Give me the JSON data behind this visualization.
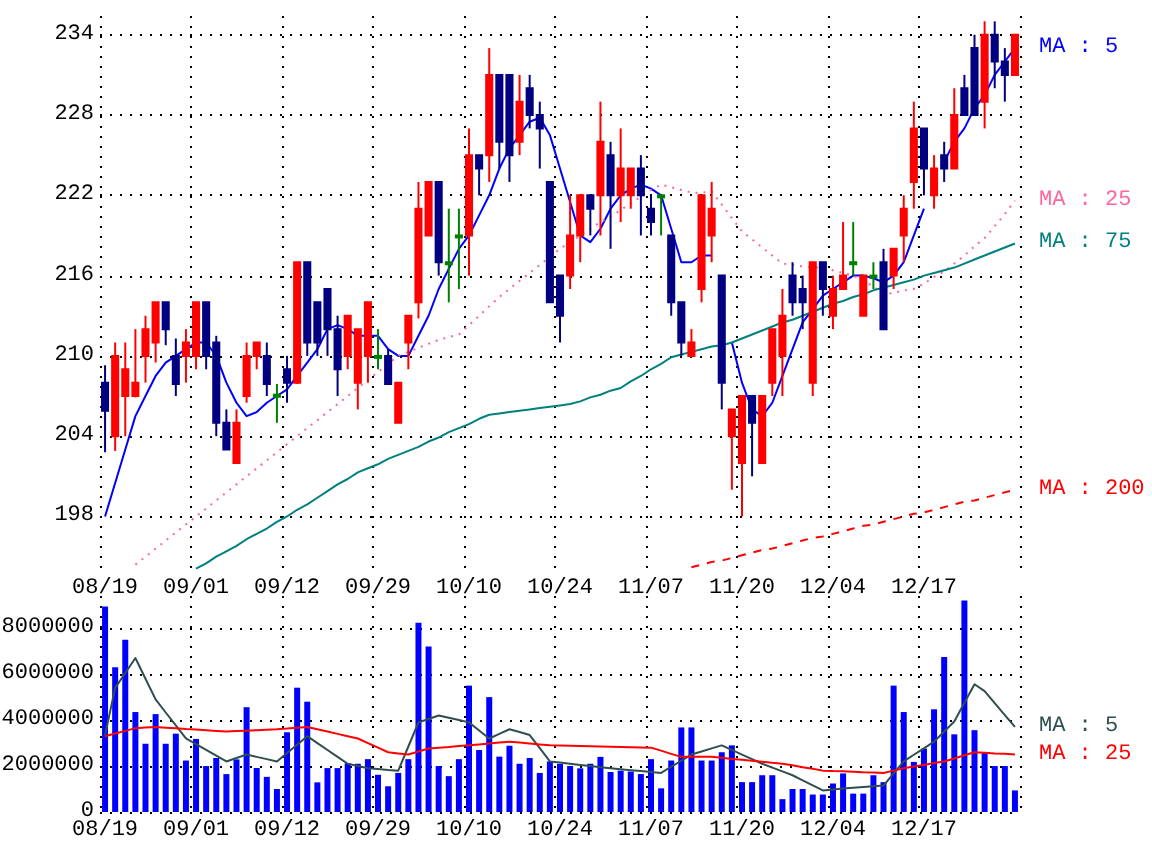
{
  "chart_data": [
    {
      "type": "candlestick",
      "grid": true,
      "marker": "none",
      "categories": [
        "08/19",
        null,
        null,
        null,
        null,
        null,
        null,
        null,
        null,
        "09/01",
        null,
        null,
        null,
        null,
        null,
        null,
        null,
        null,
        "09/12",
        null,
        null,
        null,
        null,
        null,
        null,
        null,
        null,
        "09/29",
        null,
        null,
        null,
        null,
        null,
        null,
        null,
        null,
        "10/10",
        null,
        null,
        null,
        null,
        null,
        null,
        null,
        null,
        "10/24",
        null,
        null,
        null,
        null,
        null,
        null,
        null,
        null,
        "11/07",
        null,
        null,
        null,
        null,
        null,
        null,
        null,
        null,
        "11/20",
        null,
        null,
        null,
        null,
        null,
        null,
        null,
        null,
        "12/04",
        null,
        null,
        null,
        null,
        null,
        null,
        null,
        null,
        "12/17",
        null,
        null,
        null,
        null,
        null,
        null,
        null,
        null,
        null
      ],
      "ylim": [
        194,
        235.4
      ],
      "yticks": [
        198,
        204,
        210,
        216,
        222,
        228,
        234
      ],
      "series": [
        {
          "ohlc": [
            [
              208,
              209.3,
              202.8,
              205.9
            ],
            [
              204,
              211,
              202.9,
              210
            ],
            [
              207,
              211,
              204,
              209
            ],
            [
              207,
              212,
              206.9,
              208
            ],
            [
              210,
              213,
              208,
              212
            ],
            [
              211,
              214,
              209.5,
              214
            ],
            [
              214,
              214,
              210.8,
              212
            ],
            [
              210,
              211.3,
              207,
              207.9
            ],
            [
              210,
              212,
              208,
              211
            ],
            [
              210,
              214,
              209,
              214
            ],
            [
              214,
              214,
              209,
              210
            ],
            [
              211,
              211.5,
              204,
              205
            ],
            [
              205,
              206,
              203,
              203
            ],
            [
              202,
              206,
              202,
              205
            ],
            [
              207,
              211,
              206.5,
              210
            ],
            [
              210,
              211,
              209,
              211
            ],
            [
              210,
              211,
              207,
              207.9
            ],
            [
              207.1,
              207.9,
              205,
              207.1
            ],
            [
              209,
              210,
              206.5,
              208
            ],
            [
              208,
              217,
              207.9,
              217
            ],
            [
              217,
              217,
              210,
              211
            ],
            [
              214,
              214,
              210,
              211
            ],
            [
              215,
              215,
              210,
              212
            ],
            [
              212,
              213,
              207,
              209
            ],
            [
              210,
              213,
              209,
              213
            ],
            [
              208,
              212,
              206,
              212
            ],
            [
              210,
              214,
              208,
              214
            ],
            [
              210,
              212,
              209,
              210
            ],
            [
              210,
              210.5,
              207.9,
              207.9
            ],
            [
              205,
              208,
              205,
              208
            ],
            [
              211,
              213,
              209,
              213
            ],
            [
              214,
              223,
              212.8,
              221
            ],
            [
              219,
              223,
              219,
              223
            ],
            [
              223,
              223,
              216,
              217
            ],
            [
              217,
              221,
              214,
              217
            ],
            [
              219,
              221,
              215,
              219
            ],
            [
              219,
              227,
              216,
              225
            ],
            [
              225,
              225,
              222,
              224
            ],
            [
              225,
              233,
              223,
              231
            ],
            [
              231,
              231,
              224,
              226
            ],
            [
              231,
              231,
              223,
              225
            ],
            [
              226,
              231,
              225,
              229
            ],
            [
              230,
              231,
              227,
              228
            ],
            [
              228,
              229,
              224,
              227
            ],
            [
              223,
              223,
              214,
              214
            ],
            [
              216,
              216,
              211,
              213
            ],
            [
              216,
              222,
              215,
              219
            ],
            [
              219,
              222,
              217,
              222
            ],
            [
              222,
              222,
              219,
              221
            ],
            [
              222,
              229,
              219,
              226
            ],
            [
              225,
              226,
              218,
              222
            ],
            [
              222,
              227,
              220,
              224
            ],
            [
              222,
              224,
              221,
              224
            ],
            [
              224,
              225,
              219,
              222
            ],
            [
              221,
              222,
              219,
              220
            ],
            [
              222,
              222,
              219,
              222
            ],
            [
              219,
              219,
              213,
              214
            ],
            [
              214,
              214,
              210,
              211
            ],
            [
              210,
              212,
              210,
              211
            ],
            [
              215,
              222,
              214,
              222
            ],
            [
              219,
              223,
              217,
              221
            ],
            [
              216,
              216,
              206,
              208
            ],
            [
              204,
              206,
              200,
              206
            ],
            [
              202,
              207,
              198,
              207
            ],
            [
              207,
              207,
              201,
              205
            ],
            [
              202,
              207,
              202,
              207
            ],
            [
              208,
              212,
              207,
              212
            ],
            [
              210,
              215,
              207,
              213
            ],
            [
              216,
              217,
              213,
              214
            ],
            [
              215,
              216,
              212,
              214
            ],
            [
              208,
              217,
              207,
              217
            ],
            [
              217,
              217,
              213,
              215
            ],
            [
              213,
              216,
              212,
              215
            ],
            [
              215,
              220,
              215,
              216
            ],
            [
              217,
              220,
              216,
              217
            ],
            [
              213,
              216,
              213,
              216
            ],
            [
              216,
              217,
              215,
              216
            ],
            [
              217,
              218,
              212,
              212
            ],
            [
              216,
              218,
              215,
              218
            ],
            [
              219,
              222,
              217,
              221
            ],
            [
              223,
              229,
              221,
              227
            ],
            [
              227,
              227,
              222,
              224
            ],
            [
              222,
              225,
              221,
              224
            ],
            [
              225,
              226,
              223,
              224
            ],
            [
              224,
              230,
              224,
              228
            ],
            [
              230,
              231,
              228,
              228
            ],
            [
              233,
              234,
              228,
              228
            ],
            [
              229,
              235,
              227,
              234
            ],
            [
              234,
              235,
              230,
              232
            ],
            [
              232,
              233,
              229,
              231
            ],
            [
              231,
              234,
              231,
              234
            ]
          ],
          "colors": [
            "#000080",
            "#ff0000",
            "#ff0000",
            "#ff0000",
            "#ff0000",
            "#ff0000",
            "#000080",
            "#000080",
            "#ff0000",
            "#ff0000",
            "#000080",
            "#000080",
            "#000080",
            "#ff0000",
            "#ff0000",
            "#ff0000",
            "#000080",
            "#008000",
            "#000080",
            "#ff0000",
            "#000080",
            "#000080",
            "#000080",
            "#000080",
            "#ff0000",
            "#ff0000",
            "#ff0000",
            "#008000",
            "#000080",
            "#ff0000",
            "#ff0000",
            "#ff0000",
            "#ff0000",
            "#000080",
            "#008000",
            "#008000",
            "#ff0000",
            "#000080",
            "#ff0000",
            "#000080",
            "#000080",
            "#ff0000",
            "#000080",
            "#000080",
            "#000080",
            "#000080",
            "#ff0000",
            "#ff0000",
            "#000080",
            "#ff0000",
            "#000080",
            "#ff0000",
            "#ff0000",
            "#000080",
            "#000080",
            "#008000",
            "#000080",
            "#000080",
            "#ff0000",
            "#ff0000",
            "#ff0000",
            "#000080",
            "#ff0000",
            "#ff0000",
            "#000080",
            "#ff0000",
            "#ff0000",
            "#ff0000",
            "#000080",
            "#000080",
            "#ff0000",
            "#000080",
            "#ff0000",
            "#ff0000",
            "#008000",
            "#ff0000",
            "#008000",
            "#000080",
            "#ff0000",
            "#ff0000",
            "#ff0000",
            "#000080",
            "#ff0000",
            "#000080",
            "#ff0000",
            "#000080",
            "#000080",
            "#ff0000",
            "#000080",
            "#000080",
            "#ff0000"
          ]
        },
        {
          "type": "line",
          "name": "MA : 5",
          "color": "#0000ff",
          "line_style": "solid",
          "values": [
            198,
            200.5,
            203,
            205.5,
            207,
            208.5,
            209.5,
            210,
            210.5,
            211,
            211,
            210,
            208,
            206.5,
            205.5,
            205.8,
            206.5,
            207,
            207.5,
            208.5,
            209.5,
            210.5,
            212,
            212.3,
            212,
            211.5,
            211.5,
            211.5,
            210.5,
            210,
            210,
            211.5,
            213,
            215,
            216.5,
            218,
            219,
            220.5,
            222,
            224,
            225.5,
            226.5,
            227.5,
            227.8,
            226.5,
            224,
            221.5,
            219,
            218.5,
            219.5,
            221,
            222,
            222.5,
            222.8,
            222.5,
            222,
            219.5,
            217,
            217,
            217.5,
            217.5,
            null,
            211,
            208,
            206,
            205.5,
            206.5,
            208.5,
            210.5,
            212.5,
            213.5,
            214.5,
            215,
            215.5,
            216,
            216,
            215.8,
            215.5,
            216,
            217,
            219,
            221,
            null,
            224.5,
            226,
            227,
            228.5,
            229.5,
            231,
            232,
            233
          ]
        },
        {
          "type": "line",
          "name": "MA : 25",
          "color": "#ff6699",
          "line_style": "dotted",
          "values": [
            null,
            null,
            null,
            194.4,
            195,
            195.6,
            196.2,
            196.8,
            197.4,
            198,
            198.6,
            199.2,
            199.8,
            200.4,
            201,
            201.6,
            202.2,
            202.8,
            203.4,
            204,
            204.6,
            205.2,
            205.8,
            206.4,
            207,
            207.6,
            208.2,
            208.8,
            209.4,
            210,
            210.3,
            210.6,
            210.9,
            211.2,
            211.4,
            211.6,
            212.3,
            213,
            213.7,
            214.4,
            215,
            215.6,
            216.2,
            216.8,
            217.4,
            218,
            218.5,
            219,
            219.5,
            220,
            220.4,
            220.9,
            221.4,
            221.9,
            222.4,
            222.8,
            222.6,
            222.4,
            222.2,
            222.2,
            222.3,
            221.3,
            220.3,
            219.3,
            218.7,
            218.1,
            217.5,
            216.9,
            216.8,
            216.7,
            216.6,
            216.6,
            216.4,
            216.2,
            216,
            215.6,
            215.2,
            214.6,
            214.7,
            214.9,
            215,
            215.4,
            215.9,
            216.3,
            216.9,
            217.5,
            218.2,
            218.8,
            219.7,
            220.6,
            221.6
          ]
        },
        {
          "type": "line",
          "name": "MA : 75",
          "color": "#008080",
          "line_style": "solid",
          "values": [
            null,
            null,
            null,
            null,
            null,
            null,
            null,
            null,
            null,
            194.1,
            194.5,
            195,
            195.4,
            195.8,
            196.3,
            196.7,
            197.1,
            197.6,
            198,
            198.5,
            198.9,
            199.4,
            199.9,
            200.4,
            200.8,
            201.3,
            201.6,
            201.9,
            202.3,
            202.6,
            202.9,
            203.2,
            203.6,
            203.9,
            204.3,
            204.6,
            204.9,
            205.3,
            205.6,
            205.7,
            205.8,
            205.9,
            206,
            206.1,
            206.2,
            206.3,
            206.4,
            206.6,
            206.9,
            207.1,
            207.4,
            207.6,
            208.1,
            208.5,
            209,
            209.4,
            209.9,
            210.1,
            210.3,
            210.5,
            210.7,
            210.8,
            211,
            211.3,
            211.6,
            211.9,
            212.2,
            212.5,
            212.7,
            213,
            213.3,
            213.6,
            213.9,
            214.1,
            214.4,
            214.6,
            214.9,
            215.1,
            215.3,
            215.5,
            215.7,
            216,
            216.2,
            216.4,
            216.6,
            216.9,
            217.2,
            217.5,
            217.8,
            218.1,
            218.4
          ]
        },
        {
          "type": "line",
          "name": "MA : 200",
          "color": "#ff0000",
          "line_style": "dashed",
          "values": [
            null,
            null,
            null,
            null,
            null,
            null,
            null,
            null,
            null,
            null,
            null,
            null,
            null,
            null,
            null,
            null,
            null,
            null,
            null,
            null,
            null,
            null,
            null,
            null,
            null,
            null,
            null,
            null,
            null,
            null,
            null,
            null,
            null,
            null,
            null,
            null,
            null,
            null,
            null,
            null,
            null,
            null,
            null,
            null,
            null,
            null,
            null,
            null,
            null,
            null,
            null,
            null,
            null,
            null,
            null,
            null,
            null,
            null,
            194.2,
            194.4,
            194.6,
            194.7,
            194.9,
            195.1,
            195.3,
            195.5,
            195.6,
            195.8,
            196,
            196.2,
            196.4,
            196.5,
            196.7,
            196.9,
            197.1,
            197.3,
            197.4,
            197.6,
            197.8,
            198,
            198.2,
            198.3,
            198.5,
            198.7,
            198.9,
            199.1,
            199.2,
            199.4,
            199.6,
            199.8,
            200
          ]
        }
      ]
    },
    {
      "type": "bar",
      "grid": true,
      "marker": "none",
      "categories": [
        "08/19",
        null,
        null,
        null,
        null,
        null,
        null,
        null,
        null,
        "09/01",
        null,
        null,
        null,
        null,
        null,
        null,
        null,
        null,
        "09/12",
        null,
        null,
        null,
        null,
        null,
        null,
        null,
        null,
        "09/29",
        null,
        null,
        null,
        null,
        null,
        null,
        null,
        null,
        "10/10",
        null,
        null,
        null,
        null,
        null,
        null,
        null,
        null,
        "10/24",
        null,
        null,
        null,
        null,
        null,
        null,
        null,
        null,
        "11/07",
        null,
        null,
        null,
        null,
        null,
        null,
        null,
        null,
        "11/20",
        null,
        null,
        null,
        null,
        null,
        null,
        null,
        null,
        "12/04",
        null,
        null,
        null,
        null,
        null,
        null,
        null,
        null,
        "12/17",
        null,
        null,
        null,
        null,
        null,
        null,
        null,
        null,
        null
      ],
      "ylim": [
        0,
        9400000
      ],
      "yticks": [
        0,
        2000000,
        4000000,
        6000000,
        8000000
      ],
      "series": [
        {
          "color": "#0000ff",
          "values": [
            8940000,
            6300000,
            7500000,
            4350000,
            2970000,
            4260000,
            2970000,
            3410000,
            2240000,
            3180000,
            2000000,
            2350000,
            1650000,
            2290000,
            4560000,
            1910000,
            1530000,
            1000000,
            3470000,
            5410000,
            4800000,
            1290000,
            1910000,
            1910000,
            2120000,
            2100000,
            2300000,
            1620000,
            1120000,
            1700000,
            2300000,
            8240000,
            7200000,
            2000000,
            1560000,
            2300000,
            5500000,
            2700000,
            5000000,
            2410000,
            2880000,
            2100000,
            2350000,
            1700000,
            2200000,
            2100000,
            2000000,
            1900000,
            2100000,
            2400000,
            1740000,
            1800000,
            1760000,
            1650000,
            2300000,
            1030000,
            2240000,
            3680000,
            3680000,
            2240000,
            2240000,
            2600000,
            2900000,
            1300000,
            1300000,
            1600000,
            1600000,
            560000,
            1000000,
            1000000,
            760000,
            760000,
            1240000,
            1680000,
            800000,
            800000,
            1600000,
            1300000,
            5500000,
            4350000,
            2180000,
            2760000,
            4470000,
            6740000,
            3380000,
            9200000,
            3560000,
            2560000,
            2000000,
            2000000,
            940000
          ]
        },
        {
          "type": "line",
          "name": "MA : 5",
          "color": "#2f4f4f",
          "line_style": "solid",
          "values": [
            3350000,
            5400000,
            6050000,
            6700000,
            5800000,
            4900000,
            4330000,
            3770000,
            3200000,
            2950000,
            2700000,
            2450000,
            2200000,
            2350000,
            2500000,
            2400000,
            2300000,
            2200000,
            2570000,
            2930000,
            3300000,
            3000000,
            2700000,
            2400000,
            2100000,
            2000000,
            1900000,
            1870000,
            1830000,
            1800000,
            2850000,
            3900000,
            4050000,
            4200000,
            4100000,
            4000000,
            3900000,
            3550000,
            3200000,
            3400000,
            3600000,
            3480000,
            3350000,
            2780000,
            2200000,
            2150000,
            2100000,
            2050000,
            2000000,
            1950000,
            1900000,
            1860000,
            1820000,
            1780000,
            1740000,
            1700000,
            1970000,
            2230000,
            2500000,
            2630000,
            2770000,
            2900000,
            2700000,
            2500000,
            2300000,
            2100000,
            1930000,
            1770000,
            1600000,
            1380000,
            1160000,
            940000,
            980000,
            1020000,
            1060000,
            1090000,
            1120000,
            1150000,
            1680000,
            2200000,
            2490000,
            2770000,
            3060000,
            3500000,
            3940000,
            4750000,
            5560000,
            5260000,
            4740000,
            4220000,
            3700000
          ]
        },
        {
          "type": "line",
          "name": "MA : 25",
          "color": "#ff0000",
          "line_style": "solid",
          "values": [
            3300000,
            3420000,
            3530000,
            3650000,
            3680000,
            3700000,
            3670000,
            3640000,
            3610000,
            3590000,
            3560000,
            3530000,
            3500000,
            3520000,
            3540000,
            3560000,
            3580000,
            3600000,
            3630000,
            3670000,
            3700000,
            3600000,
            3500000,
            3400000,
            3300000,
            3200000,
            3000000,
            2800000,
            2600000,
            2550000,
            2500000,
            2630000,
            2760000,
            2800000,
            2830000,
            2870000,
            2900000,
            2940000,
            2980000,
            3020000,
            3060000,
            3020000,
            2980000,
            2940000,
            2900000,
            2890000,
            2880000,
            2870000,
            2860000,
            2850000,
            2840000,
            2830000,
            2820000,
            2810000,
            2800000,
            2670000,
            2530000,
            2400000,
            2400000,
            2400000,
            2400000,
            2360000,
            2310000,
            2270000,
            2230000,
            2190000,
            2140000,
            2100000,
            2030000,
            1950000,
            1880000,
            1800000,
            1780000,
            1770000,
            1750000,
            1730000,
            1720000,
            1700000,
            1800000,
            1900000,
            1980000,
            2050000,
            2130000,
            2200000,
            2330000,
            2470000,
            2600000,
            2580000,
            2550000,
            2530000,
            2500000
          ]
        }
      ]
    }
  ]
}
